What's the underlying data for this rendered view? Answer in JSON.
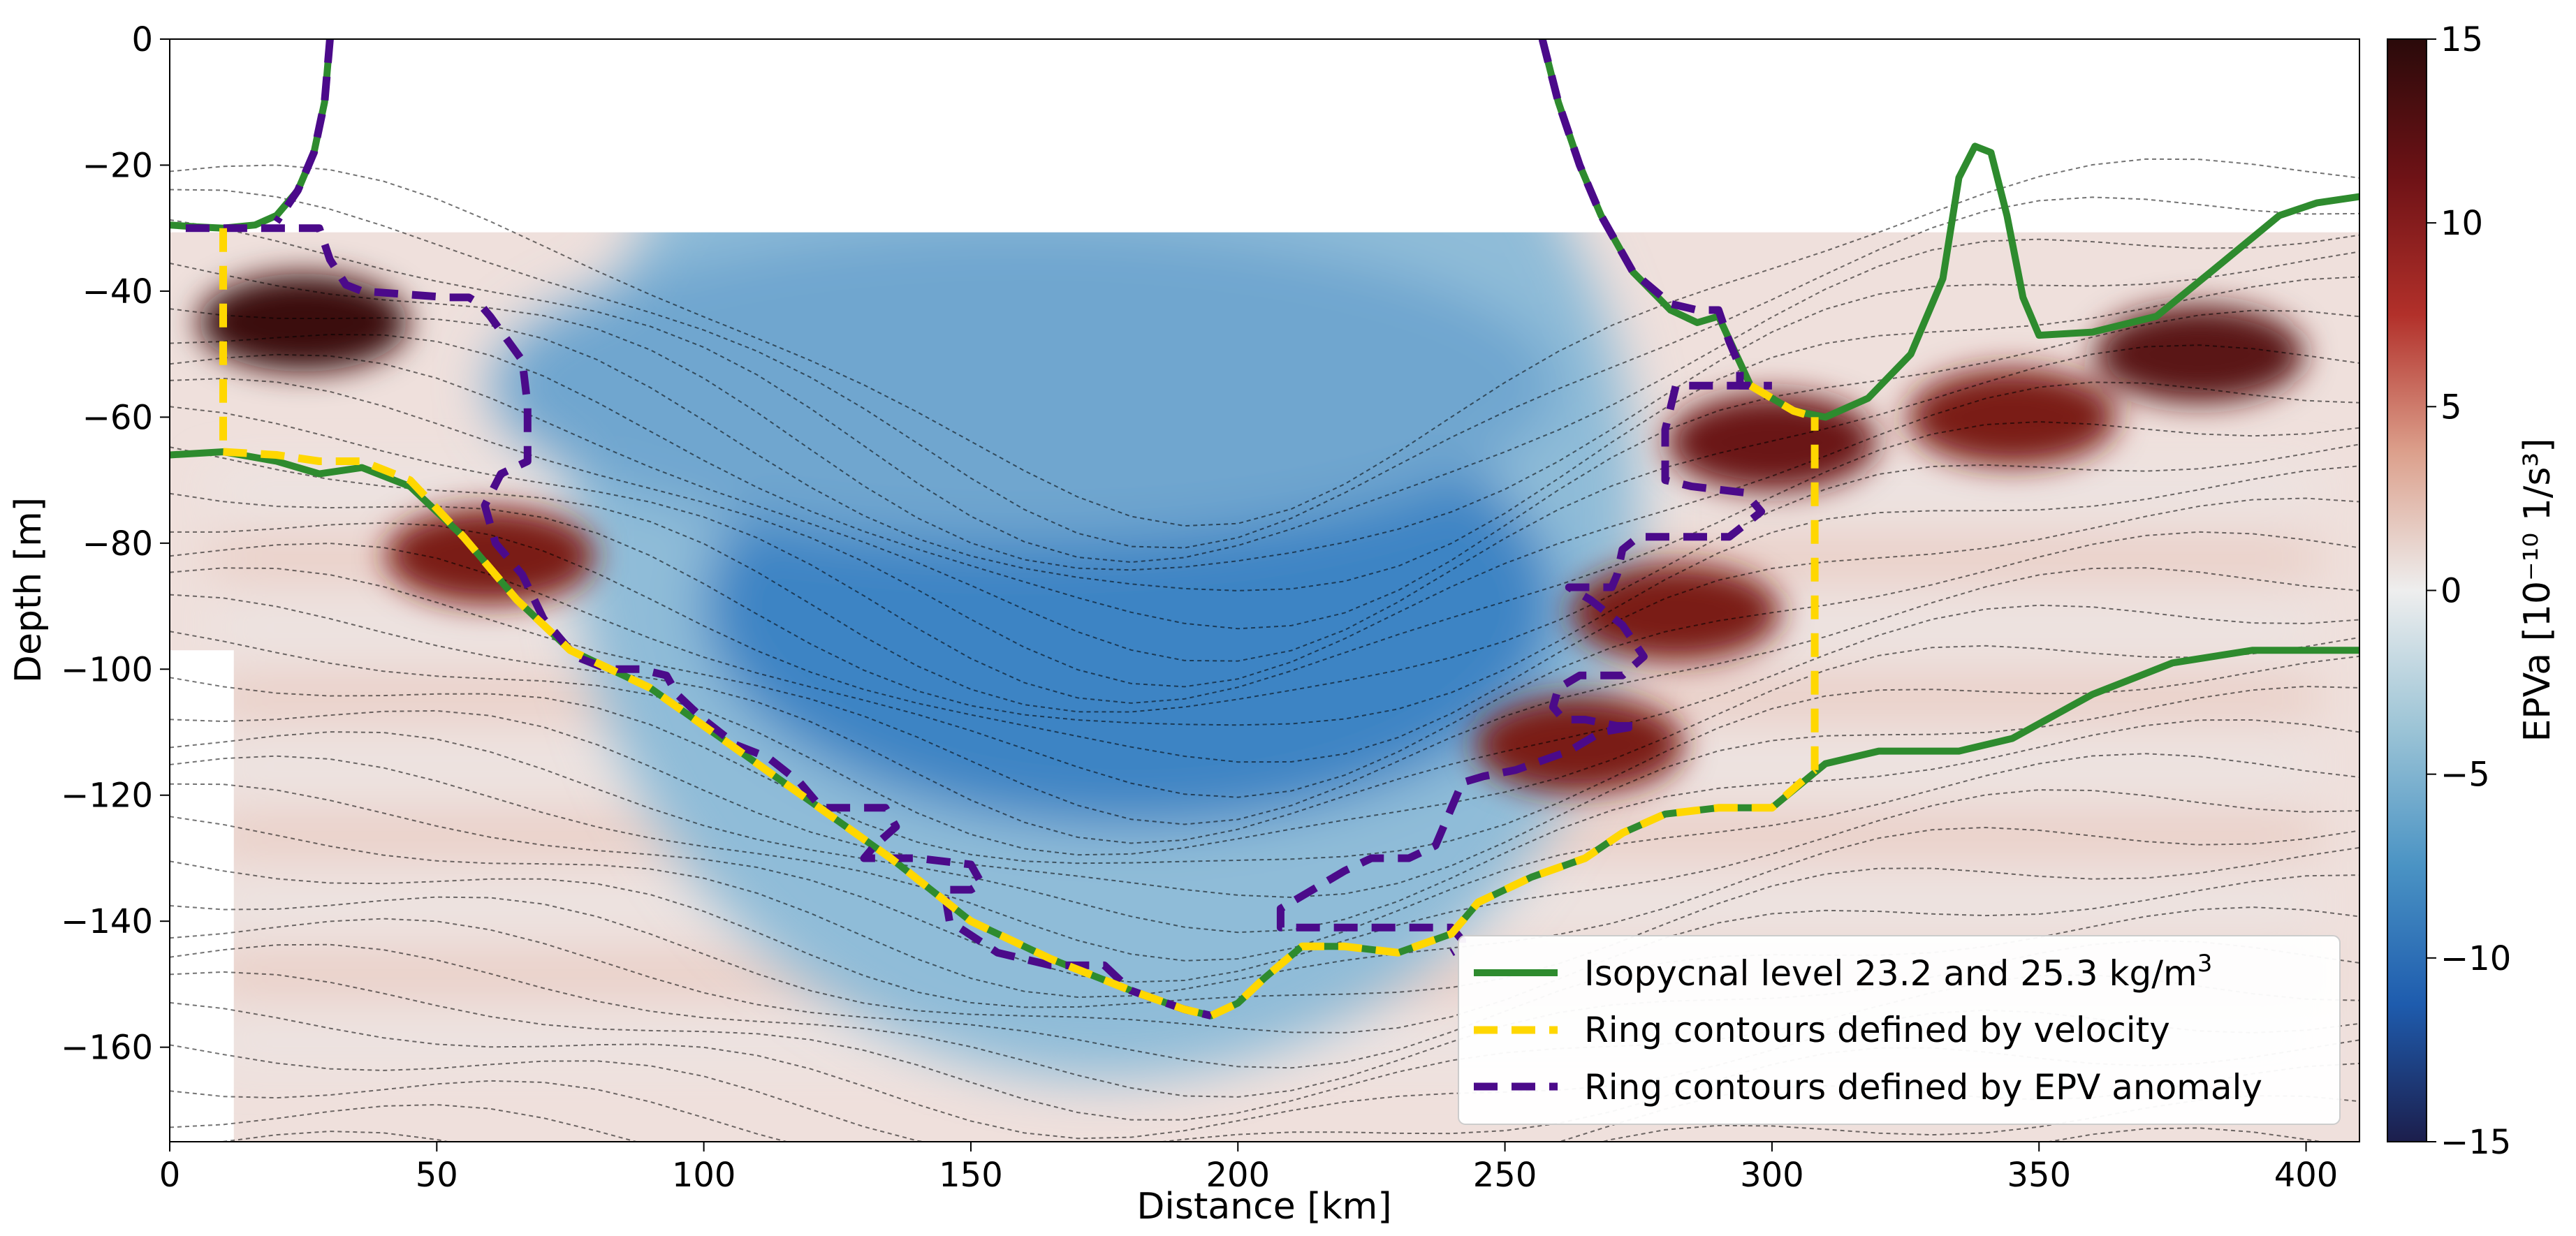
{
  "chart_data": {
    "type": "section",
    "xlabel": "Distance [km]",
    "ylabel": "Depth [m]",
    "xlim": [
      0,
      410
    ],
    "ylim": [
      -175,
      0
    ],
    "xticks": [
      0,
      50,
      100,
      150,
      200,
      250,
      300,
      350,
      400
    ],
    "xtick_labels": [
      "0",
      "50",
      "100",
      "150",
      "200",
      "250",
      "300",
      "350",
      "400"
    ],
    "yticks": [
      0,
      -20,
      -40,
      -60,
      -80,
      -100,
      -120,
      -140,
      -160
    ],
    "ytick_labels": [
      "0",
      "−20",
      "−40",
      "−60",
      "−80",
      "−100",
      "−120",
      "−140",
      "−160"
    ],
    "colorbar": {
      "label": "EPVa [10⁻¹⁰ 1/s³]",
      "range": [
        -15,
        15
      ],
      "ticks": [
        15,
        10,
        5,
        0,
        -5,
        -10,
        -15
      ],
      "tick_labels": [
        "15",
        "10",
        "5",
        "0",
        "−5",
        "−10",
        "−15"
      ],
      "colors": [
        "#2a0a0a",
        "#6e1216",
        "#b2302a",
        "#dca08c",
        "#eeeeee",
        "#9cc4d6",
        "#4a93c4",
        "#1e5cae",
        "#1c1e4c"
      ]
    },
    "background": {
      "data_top_depth": -30,
      "negative_core": {
        "x_range": [
          75,
          275
        ],
        "depth_range": [
          -55,
          -130
        ],
        "color": "#3d84c4"
      },
      "positive_patches": [
        {
          "x": 25,
          "depth": -45,
          "color": "#3a0c0e"
        },
        {
          "x": 60,
          "depth": -82,
          "color": "#7a1a18"
        },
        {
          "x": 300,
          "depth": -64,
          "color": "#6a1414"
        },
        {
          "x": 282,
          "depth": -91,
          "color": "#7a1a18"
        },
        {
          "x": 264,
          "depth": -112,
          "color": "#7a1a18"
        },
        {
          "x": 380,
          "depth": -50,
          "color": "#5a1212"
        },
        {
          "x": 345,
          "depth": -60,
          "color": "#7a1a18"
        }
      ]
    },
    "series": [
      {
        "name": "Isopycnal 23.2 kg/m3",
        "style": "solid",
        "color": "#2e8b2e",
        "segments": [
          {
            "x": [
              30,
              29,
              27,
              24,
              20,
              16,
              10,
              5,
              0
            ],
            "y": [
              0,
              -10,
              -18,
              -24,
              -28,
              -29.5,
              -30,
              -29.8,
              -29.5
            ]
          },
          {
            "x": [
              257,
              260,
              264,
              268,
              274,
              281,
              286,
              290,
              296,
              304,
              310,
              318,
              326,
              332,
              335,
              338,
              341,
              344,
              347,
              350,
              360,
              372,
              385,
              395,
              402,
              410
            ],
            "y": [
              0,
              -10,
              -20,
              -28,
              -37,
              -43,
              -45,
              -44,
              -55,
              -59,
              -60,
              -57,
              -50,
              -38,
              -22,
              -17,
              -18,
              -28,
              -41,
              -47,
              -46.5,
              -44,
              -35,
              -28,
              -26,
              -25
            ]
          }
        ]
      },
      {
        "name": "Isopycnal 25.3 kg/m3",
        "style": "solid",
        "color": "#2e8b2e",
        "segments": [
          {
            "x": [
              0,
              10,
              20,
              28,
              36,
              45,
              55,
              65,
              75,
              90,
              105,
              120,
              135,
              150,
              165,
              180,
              190,
              195,
              200,
              205,
              212,
              220,
              230,
              240,
              245,
              255,
              265,
              272,
              280,
              290,
              300,
              310,
              320,
              335,
              345,
              360,
              375,
              390,
              410
            ],
            "y": [
              -66,
              -65.5,
              -67,
              -69,
              -68,
              -71,
              -79,
              -89,
              -97,
              -103,
              -112,
              -121,
              -130,
              -140,
              -146,
              -151,
              -154,
              -155,
              -153,
              -149,
              -144,
              -144,
              -145,
              -142,
              -137,
              -133,
              -130,
              -126,
              -123,
              -122,
              -122,
              -115,
              -113,
              -113,
              -111,
              -104,
              -99,
              -97,
              -97
            ]
          }
        ]
      },
      {
        "name": "Ring contours defined by velocity",
        "style": "dashed",
        "color": "#ffd700",
        "segments": [
          {
            "x": [
              10,
              10
            ],
            "y": [
              -30,
              -65
            ]
          },
          {
            "x": [
              10,
              20,
              28,
              36,
              45,
              55,
              65,
              75,
              90,
              105,
              120,
              135,
              150,
              165,
              180,
              190,
              195,
              200,
              205,
              212,
              220,
              230,
              240,
              245,
              255,
              265,
              272,
              280,
              290,
              300,
              308
            ],
            "y": [
              -65.5,
              -66,
              -67,
              -67,
              -70,
              -79,
              -89,
              -97,
              -103,
              -112,
              -121,
              -130,
              -140,
              -146,
              -151,
              -154,
              -155,
              -153,
              -149,
              -144,
              -144,
              -145,
              -142,
              -137,
              -133,
              -130,
              -126,
              -123,
              -122,
              -122,
              -116
            ]
          },
          {
            "x": [
              308,
              308
            ],
            "y": [
              -116,
              -60
            ]
          },
          {
            "x": [
              296,
              304,
              308
            ],
            "y": [
              -55,
              -59,
              -60
            ]
          }
        ]
      },
      {
        "name": "Ring contours defined by EPV anomaly",
        "style": "dashed",
        "color": "#4b0a8a",
        "segments": [
          {
            "x": [
              30,
              29,
              27,
              24,
              20
            ],
            "y": [
              0,
              -10,
              -18,
              -24,
              -29
            ]
          },
          {
            "x": [
              3,
              28,
              30,
              33,
              36,
              44,
              52,
              56,
              58,
              60,
              66,
              67,
              67,
              62,
              59,
              61,
              66,
              70,
              76,
              82,
              88,
              93,
              95,
              100,
              106,
              112,
              118,
              122,
              126,
              130,
              134,
              136,
              132,
              130,
              134,
              140,
              150,
              152,
              150,
              145,
              146,
              155,
              165,
              175,
              180,
              190,
              195
            ],
            "y": [
              -30,
              -30,
              -35,
              -39,
              -40,
              -40.5,
              -41,
              -41,
              -42,
              -44,
              -51,
              -58,
              -67,
              -69,
              -74,
              -80,
              -85,
              -92,
              -98,
              -100,
              -100,
              -101,
              -104,
              -108,
              -112,
              -114,
              -118,
              -122,
              -122,
              -122,
              -122,
              -125,
              -128,
              -130,
              -130,
              -130,
              -131,
              -134,
              -135,
              -135,
              -140,
              -145,
              -147,
              -147,
              -151,
              -154,
              -155
            ]
          },
          {
            "x": [
              257,
              260,
              264,
              268,
              274,
              281,
              286,
              290,
              292,
              294,
              294,
              296,
              300
            ],
            "y": [
              0,
              -10,
              -20,
              -28,
              -37,
              -42,
              -43,
              -43,
              -48,
              -52,
              -55,
              -55,
              -55
            ]
          },
          {
            "x": [
              296,
              282,
              280,
              280,
              285,
              295,
              298,
              292,
              275,
              272,
              271,
              270,
              265,
              262,
              266,
              272,
              276,
              272,
              264,
              260,
              259,
              261,
              265,
              271,
              275,
              268,
              262,
              252,
              246,
              242,
              240,
              237,
              232,
              225,
              220,
              214,
              210,
              208,
              208,
              213,
              226,
              235,
              240,
              242,
              242,
              240
            ],
            "y": [
              -55,
              -55,
              -62,
              -70,
              -71,
              -72,
              -75,
              -79,
              -79,
              -81,
              -85,
              -87,
              -87,
              -87,
              -89,
              -93,
              -98,
              -101,
              -101,
              -103,
              -106,
              -108,
              -108,
              -109,
              -109,
              -110,
              -113,
              -116,
              -117,
              -118,
              -122,
              -128,
              -130,
              -130,
              -132,
              -135,
              -137,
              -138,
              -141,
              -141,
              -141,
              -141,
              -141,
              -143,
              -144,
              -145
            ]
          }
        ]
      }
    ],
    "legend": {
      "location": "lower-right",
      "entries": [
        {
          "label": "Isopycnal level 23.2 and 25.3 kg/m",
          "superscript": "3",
          "style": "solid",
          "color": "#2e8b2e"
        },
        {
          "label": "Ring contours defined by velocity",
          "style": "dashed",
          "color": "#ffd700"
        },
        {
          "label": "Ring contours defined by EPV anomaly",
          "style": "dashed",
          "color": "#4b0a8a"
        }
      ]
    }
  }
}
